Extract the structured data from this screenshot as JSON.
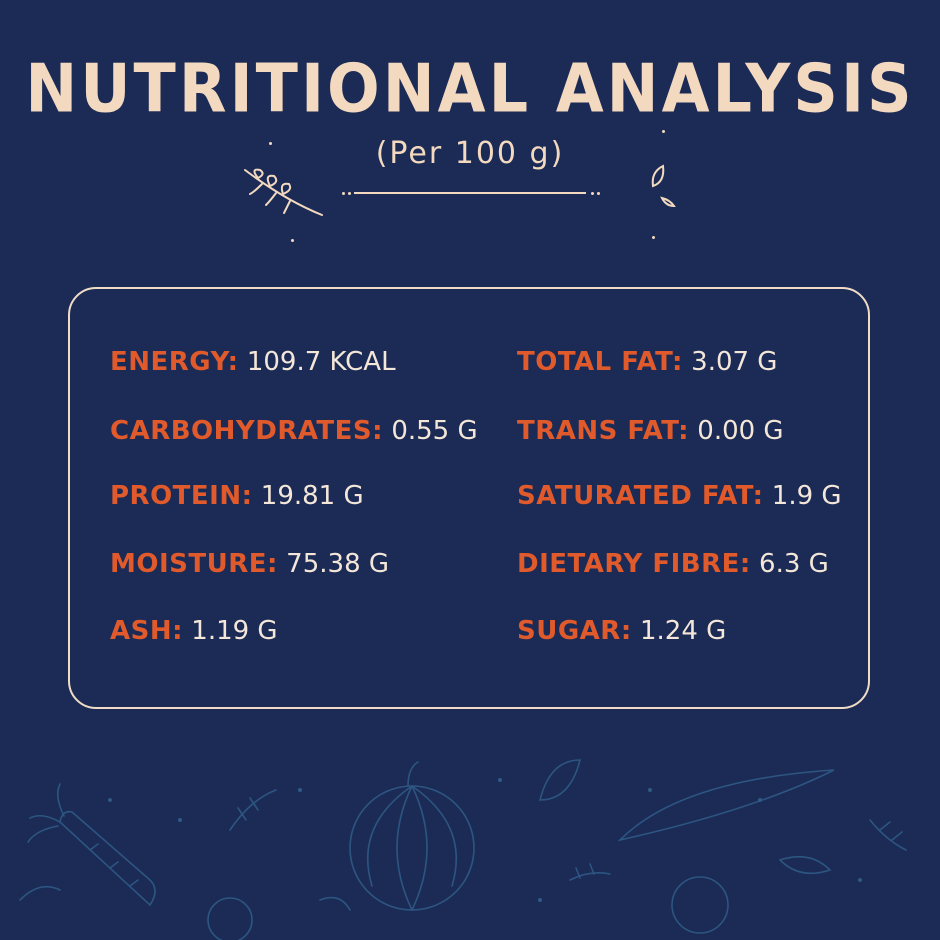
{
  "header": {
    "title": "NUTRITIONAL ANALYSIS",
    "subtitle": "(Per 100 g)"
  },
  "nutrients_left": [
    {
      "label": "ENERGY:",
      "value": "109.7 KCAL"
    },
    {
      "label": "CARBOHYDRATES:",
      "value": "0.55 G"
    },
    {
      "label": "PROTEIN:",
      "value": "19.81 G"
    },
    {
      "label": "MOISTURE:",
      "value": "75.38 G"
    },
    {
      "label": "ASH:",
      "value": "1.19 G"
    }
  ],
  "nutrients_right": [
    {
      "label": "TOTAL FAT:",
      "value": "3.07 G"
    },
    {
      "label": "TRANS FAT:",
      "value": "0.00 G"
    },
    {
      "label": "SATURATED FAT:",
      "value": "1.9 G"
    },
    {
      "label": "DIETARY FIBRE:",
      "value": "6.3 G"
    },
    {
      "label": "SUGAR:",
      "value": "1.24 G"
    }
  ],
  "colors": {
    "background": "#1b2b55",
    "title": "#f3d9bf",
    "label": "#e05a2b",
    "value": "#f4e6d8",
    "border": "#f0dcc6"
  }
}
